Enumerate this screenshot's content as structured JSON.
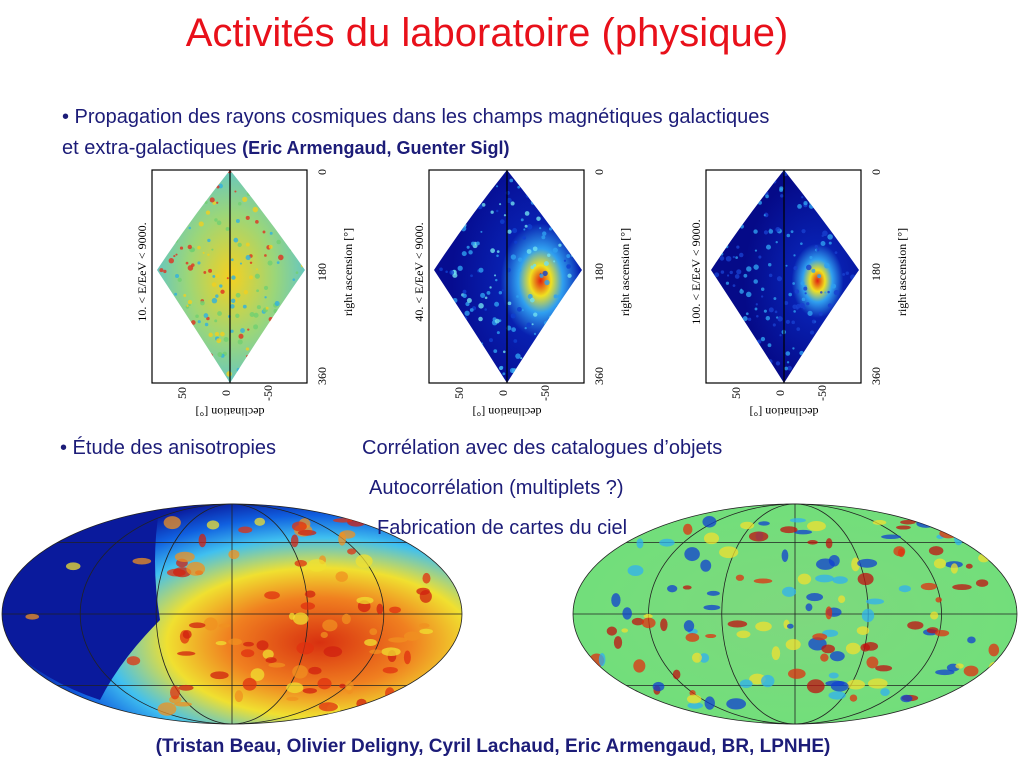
{
  "title": "Activités du laboratoire (physique)",
  "propagation": {
    "text": "• Propagation des rayons cosmiques dans les champs magnétiques galactiques",
    "text2": "et extra-galactiques",
    "authors": "(Eric Armengaud, Guenter Sigl)"
  },
  "panels": [
    {
      "energy_label": "10. < E/EeV < 9000.",
      "ra_label": "right ascension [°]",
      "ra_ticks": [
        0,
        180,
        360
      ],
      "dec_label": "declination [°]",
      "dec_ticks": [
        50,
        0,
        -50
      ]
    },
    {
      "energy_label": "40. < E/EeV < 9000.",
      "ra_label": "right ascension [°]",
      "ra_ticks": [
        0,
        180,
        360
      ],
      "dec_label": "declination [°]",
      "dec_ticks": [
        50,
        0,
        -50
      ]
    },
    {
      "energy_label": "100. < E/EeV < 9000.",
      "ra_label": "right ascension [°]",
      "ra_ticks": [
        0,
        180,
        360
      ],
      "dec_label": "declination [°]",
      "dec_ticks": [
        50,
        0,
        -50
      ]
    }
  ],
  "anisotropies": {
    "heading": "• Étude des anisotropies",
    "items": [
      "Corrélation avec des catalogues d’objets",
      "Autocorrélation (multiplets ?)",
      "Fabrication de cartes du ciel"
    ]
  },
  "footer": "(Tristan Beau, Olivier Deligny, Cyril Lachaud, Eric Armengaud, BR, LPNHE)"
}
